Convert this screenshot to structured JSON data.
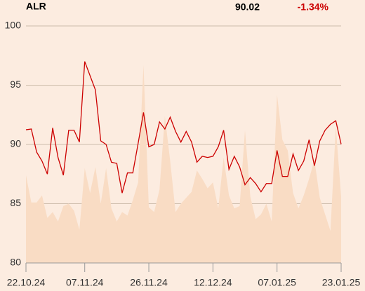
{
  "chart_data": {
    "type": "line",
    "title": "ALR",
    "price": 90.02,
    "change": {
      "value": -1.34,
      "label": "-1.34%"
    },
    "categories": [
      "22.10.24",
      null,
      null,
      null,
      null,
      null,
      null,
      null,
      null,
      null,
      null,
      "07.11.24",
      null,
      null,
      null,
      null,
      null,
      null,
      null,
      null,
      null,
      null,
      null,
      "26.11.24",
      null,
      null,
      null,
      null,
      null,
      null,
      null,
      null,
      null,
      null,
      null,
      "12.12.24",
      null,
      null,
      null,
      null,
      null,
      null,
      null,
      null,
      null,
      null,
      null,
      "07.01.25",
      null,
      null,
      null,
      null,
      null,
      null,
      null,
      null,
      null,
      null,
      null,
      "23.01.25"
    ],
    "series": [
      {
        "type": "area",
        "color": "#f9dcc4",
        "values": [
          87.4,
          85.1,
          85.1,
          85.7,
          83.8,
          84.3,
          83.5,
          84.8,
          85.0,
          84.4,
          82.8,
          88.0,
          85.9,
          88.1,
          85.0,
          88.0,
          84.6,
          83.5,
          84.3,
          84.0,
          85.3,
          86.8,
          96.7,
          84.7,
          84.3,
          86.2,
          92.4,
          88.6,
          84.3,
          85.0,
          85.5,
          86.0,
          87.8,
          87.1,
          86.3,
          86.8,
          84.6,
          88.9,
          85.7,
          84.6,
          84.8,
          91.2,
          85.6,
          83.7,
          84.1,
          85.0,
          83.5,
          94.2,
          90.4,
          89.5,
          85.9,
          84.6,
          85.7,
          87.1,
          88.7,
          85.5,
          84.1,
          82.7,
          91.5,
          85.6
        ]
      },
      {
        "type": "line",
        "color": "#cc0000",
        "values": [
          91.24,
          91.3,
          89.35,
          88.6,
          87.5,
          91.4,
          88.9,
          87.4,
          91.2,
          91.2,
          90.2,
          97.0,
          95.8,
          94.6,
          90.3,
          90.0,
          88.5,
          88.4,
          85.9,
          87.6,
          87.6,
          90.1,
          92.7,
          89.8,
          90.0,
          91.9,
          91.3,
          92.3,
          91.1,
          90.2,
          91.1,
          90.2,
          88.5,
          89.0,
          88.9,
          89.0,
          89.8,
          91.2,
          87.9,
          89.0,
          88.1,
          86.6,
          87.2,
          86.7,
          86.0,
          86.7,
          86.7,
          89.5,
          87.3,
          87.3,
          89.2,
          87.8,
          88.6,
          90.4,
          88.2,
          90.3,
          91.2,
          91.7,
          92.0,
          90.02
        ]
      }
    ],
    "ylim": [
      80,
      100
    ],
    "yticks": [
      80,
      85,
      90,
      95,
      100
    ],
    "grid": true
  }
}
